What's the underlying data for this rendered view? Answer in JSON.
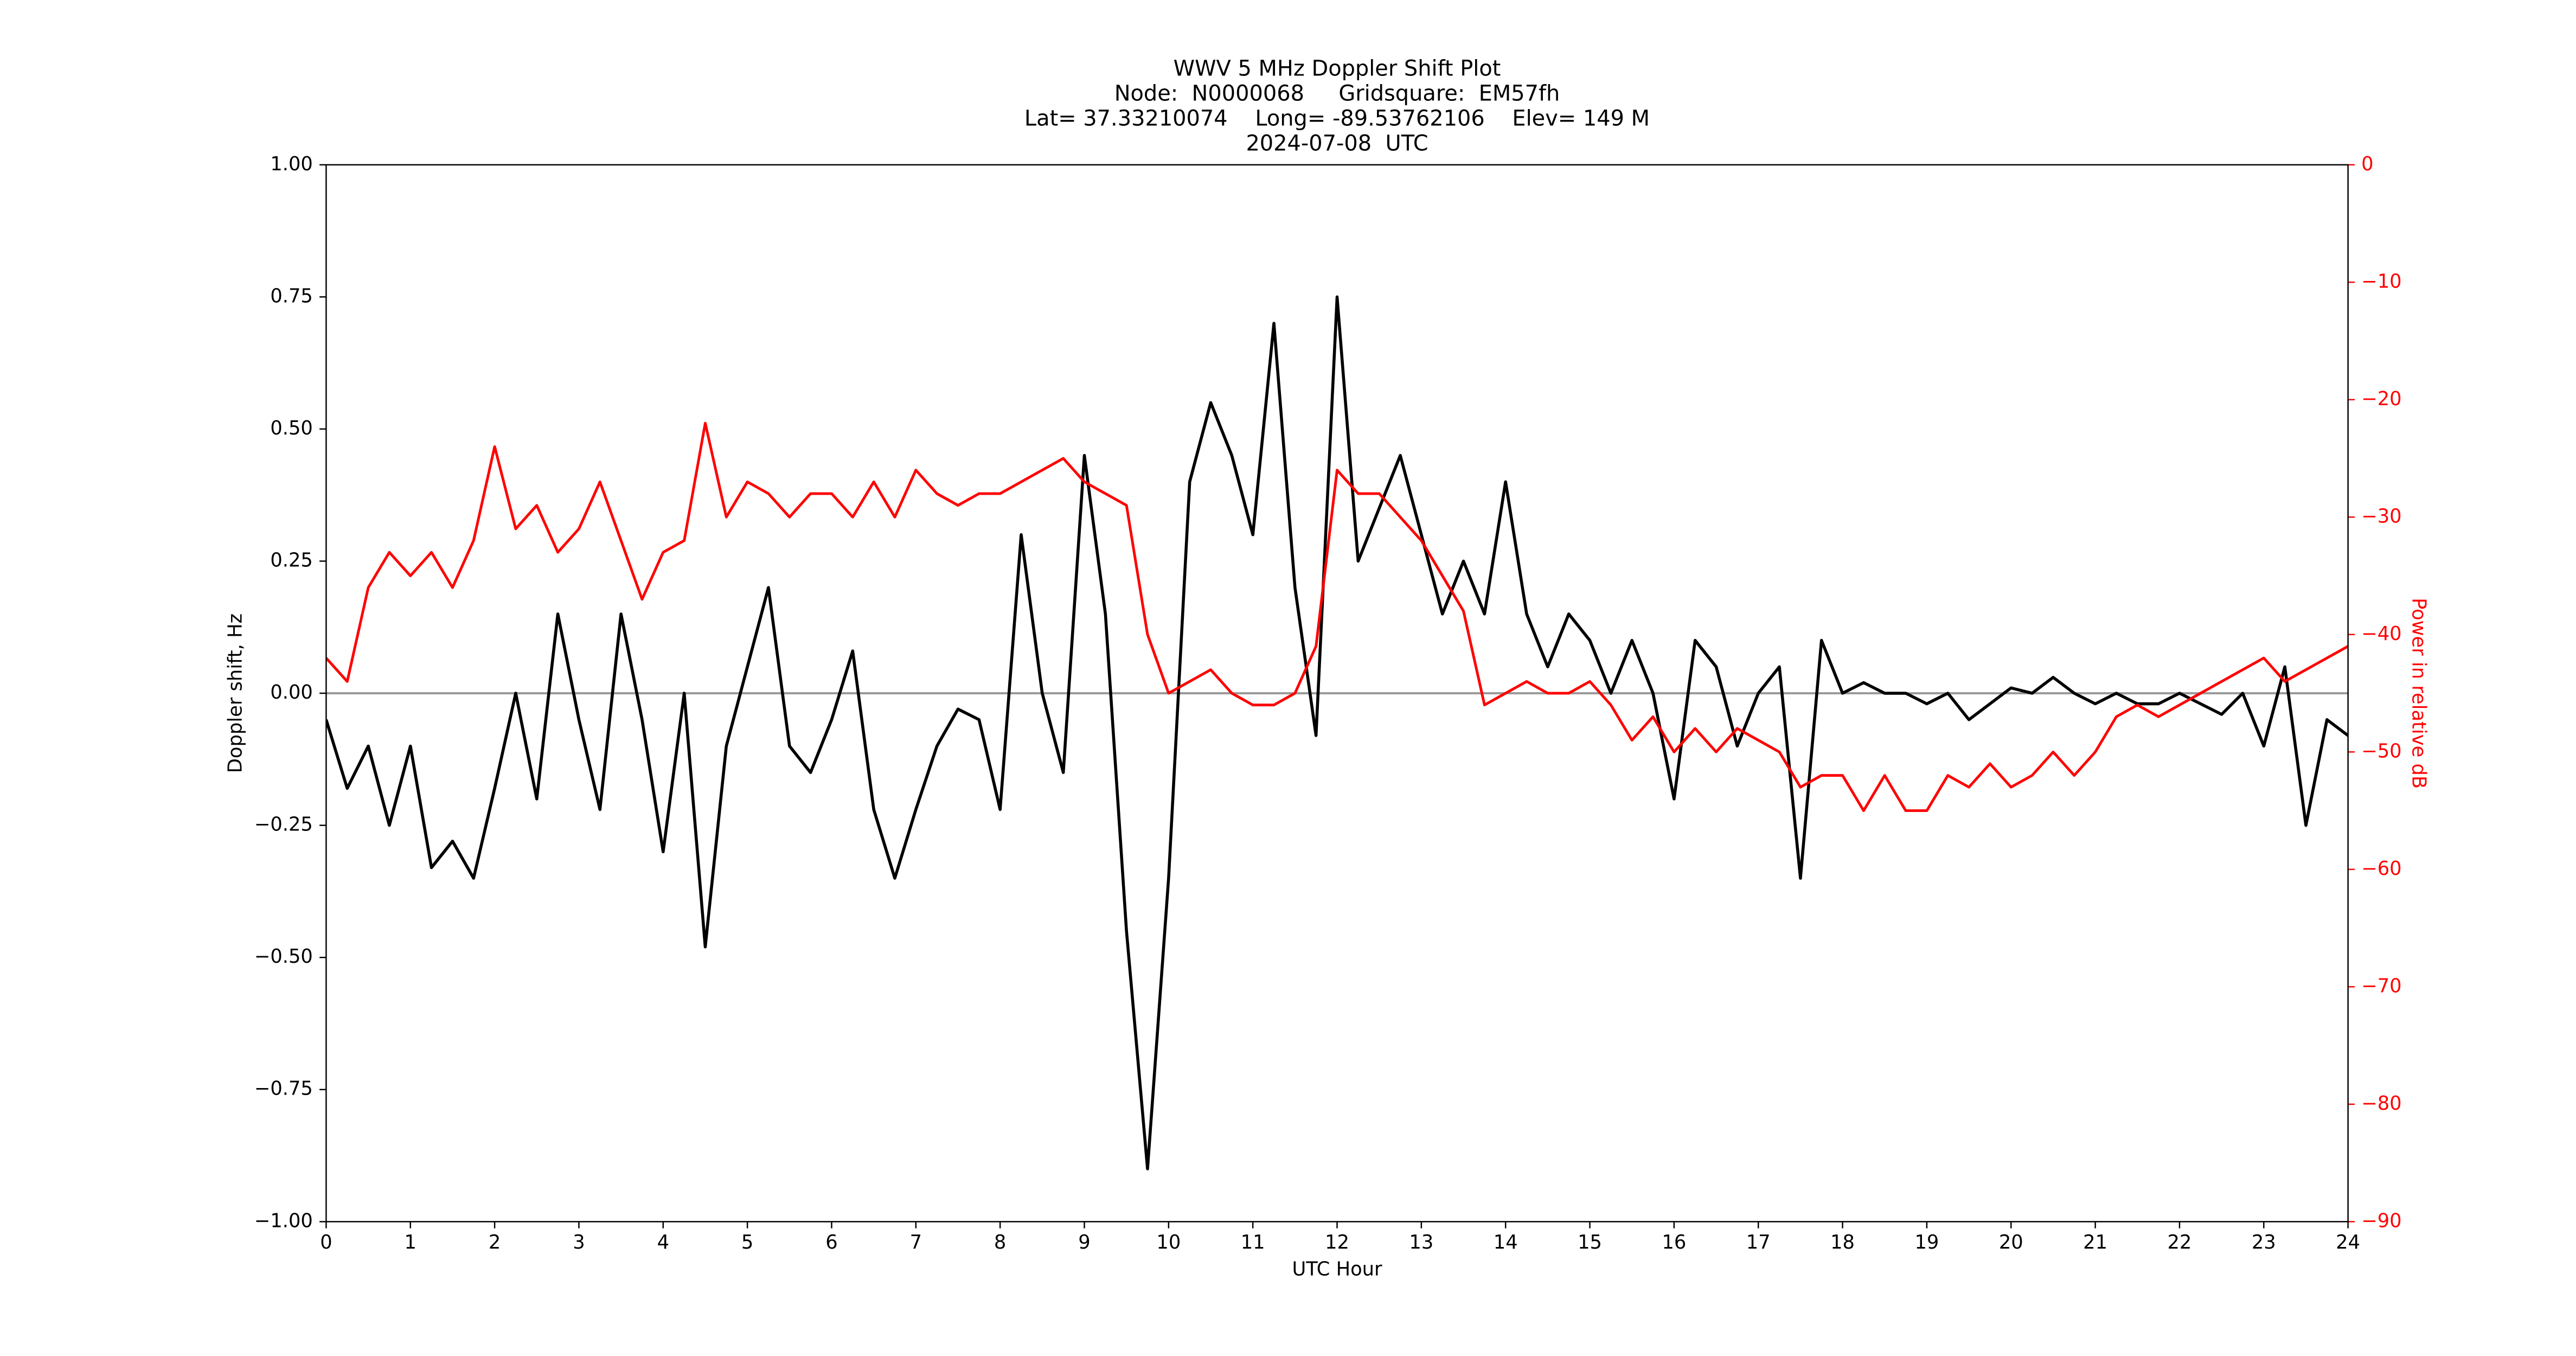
{
  "chart_data": {
    "type": "line",
    "title": [
      "WWV 5 MHz Doppler Shift Plot",
      "Node:  N0000068     Gridsquare:  EM57fh",
      "Lat= 37.33210074    Long= -89.53762106    Elev= 149 M",
      "2024-07-08  UTC"
    ],
    "xlabel": "UTC Hour",
    "ylabel": "Doppler shift, Hz",
    "y2label": "Power in relative dB",
    "x": [
      0,
      0.25,
      0.5,
      0.75,
      1,
      1.25,
      1.5,
      1.75,
      2,
      2.25,
      2.5,
      2.75,
      3,
      3.25,
      3.5,
      3.75,
      4,
      4.25,
      4.5,
      4.75,
      5,
      5.25,
      5.5,
      5.75,
      6,
      6.25,
      6.5,
      6.75,
      7,
      7.25,
      7.5,
      7.75,
      8,
      8.25,
      8.5,
      8.75,
      9,
      9.25,
      9.5,
      9.75,
      10,
      10.25,
      10.5,
      10.75,
      11,
      11.25,
      11.5,
      11.75,
      12,
      12.25,
      12.5,
      12.75,
      13,
      13.25,
      13.5,
      13.75,
      14,
      14.25,
      14.5,
      14.75,
      15,
      15.25,
      15.5,
      15.75,
      16,
      16.25,
      16.5,
      16.75,
      17,
      17.25,
      17.5,
      17.75,
      18,
      18.25,
      18.5,
      18.75,
      19,
      19.25,
      19.5,
      19.75,
      20,
      20.25,
      20.5,
      20.75,
      21,
      21.25,
      21.5,
      21.75,
      22,
      22.25,
      22.5,
      22.75,
      23,
      23.25,
      23.5,
      23.75,
      24
    ],
    "series": [
      {
        "name": "Doppler shift",
        "color": "#000000",
        "axis": "y",
        "values": [
          -0.05,
          -0.18,
          -0.1,
          -0.25,
          -0.1,
          -0.33,
          -0.28,
          -0.35,
          -0.18,
          0.0,
          -0.2,
          0.15,
          -0.05,
          -0.22,
          0.15,
          -0.05,
          -0.3,
          0.0,
          -0.48,
          -0.1,
          0.05,
          0.2,
          -0.1,
          -0.15,
          -0.05,
          0.08,
          -0.22,
          -0.35,
          -0.22,
          -0.1,
          -0.03,
          -0.05,
          -0.22,
          0.3,
          0.0,
          -0.15,
          0.45,
          0.15,
          -0.45,
          -0.9,
          -0.35,
          0.4,
          0.55,
          0.45,
          0.3,
          0.7,
          0.2,
          -0.08,
          0.75,
          0.25,
          0.35,
          0.45,
          0.3,
          0.15,
          0.25,
          0.15,
          0.4,
          0.15,
          0.05,
          0.15,
          0.1,
          0.0,
          0.1,
          0.0,
          -0.2,
          0.1,
          0.05,
          -0.1,
          0.0,
          0.05,
          -0.35,
          0.1,
          0.0,
          0.02,
          0.0,
          0.0,
          -0.02,
          0.0,
          -0.05,
          -0.02,
          0.01,
          0.0,
          0.03,
          0.0,
          -0.02,
          0.0,
          -0.02,
          -0.02,
          0.0,
          -0.02,
          -0.04,
          0.0,
          -0.1,
          0.05,
          -0.25,
          -0.05,
          -0.08
        ]
      },
      {
        "name": "Power",
        "color": "#ff0000",
        "axis": "y2",
        "values": [
          -42,
          -44,
          -36,
          -33,
          -35,
          -33,
          -36,
          -32,
          -24,
          -31,
          -29,
          -33,
          -31,
          -27,
          -32,
          -37,
          -33,
          -32,
          -22,
          -30,
          -27,
          -28,
          -30,
          -28,
          -28,
          -30,
          -27,
          -30,
          -26,
          -28,
          -29,
          -28,
          -28,
          -27,
          -26,
          -25,
          -27,
          -28,
          -29,
          -40,
          -45,
          -44,
          -43,
          -45,
          -46,
          -46,
          -45,
          -41,
          -26,
          -28,
          -28,
          -30,
          -32,
          -35,
          -38,
          -46,
          -45,
          -44,
          -45,
          -45,
          -44,
          -46,
          -49,
          -47,
          -50,
          -48,
          -50,
          -48,
          -49,
          -50,
          -53,
          -52,
          -52,
          -55,
          -52,
          -55,
          -55,
          -52,
          -53,
          -51,
          -53,
          -52,
          -50,
          -52,
          -50,
          -47,
          -46,
          -47,
          -46,
          -45,
          -44,
          -43,
          -42,
          -44,
          -43,
          -42,
          -41
        ]
      }
    ],
    "reference_line": 0,
    "reference_color": "#999999",
    "xlim": [
      0,
      24
    ],
    "xticks": [
      0,
      1,
      2,
      3,
      4,
      5,
      6,
      7,
      8,
      9,
      10,
      11,
      12,
      13,
      14,
      15,
      16,
      17,
      18,
      19,
      20,
      21,
      22,
      23,
      24
    ],
    "ylim": [
      -1,
      1
    ],
    "yticks": [
      {
        "value": -1,
        "label": "−1.00"
      },
      {
        "value": -0.75,
        "label": "−0.75"
      },
      {
        "value": -0.5,
        "label": "−0.50"
      },
      {
        "value": -0.25,
        "label": "−0.25"
      },
      {
        "value": 0,
        "label": "0.00"
      },
      {
        "value": 0.25,
        "label": "0.25"
      },
      {
        "value": 0.5,
        "label": "0.50"
      },
      {
        "value": 0.75,
        "label": "0.75"
      },
      {
        "value": 1,
        "label": "1.00"
      }
    ],
    "y2lim": [
      -90,
      0
    ],
    "y2ticks": [
      0,
      {
        "value": -10,
        "label": "−10"
      },
      {
        "value": -20,
        "label": "−20"
      },
      {
        "value": -30,
        "label": "−30"
      },
      {
        "value": -40,
        "label": "−40"
      },
      {
        "value": -50,
        "label": "−50"
      },
      {
        "value": -60,
        "label": "−60"
      },
      {
        "value": -70,
        "label": "−70"
      },
      {
        "value": -80,
        "label": "−80"
      },
      {
        "value": -90,
        "label": "−90"
      }
    ],
    "y2color": "#ff0000",
    "grid": false
  }
}
